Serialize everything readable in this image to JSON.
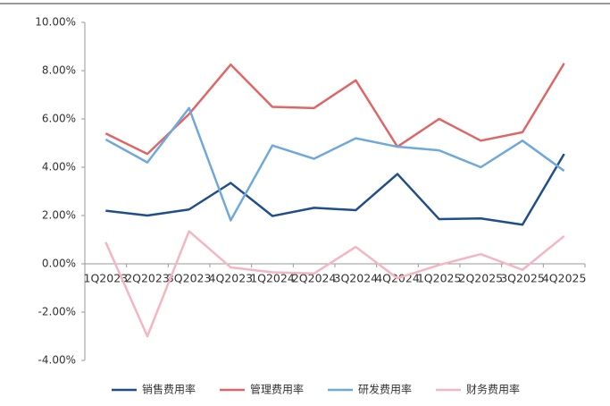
{
  "chart_data": {
    "type": "line",
    "categories": [
      "1Q2023",
      "2Q2023",
      "3Q2023",
      "4Q2023",
      "1Q2024",
      "2Q2024",
      "3Q2024",
      "4Q2024",
      "1Q2025",
      "2Q2025",
      "3Q2025",
      "4Q2025"
    ],
    "series": [
      {
        "name": "销售费用率",
        "color": "#1f4e8c",
        "values": [
          2.2,
          2.0,
          2.25,
          3.35,
          1.98,
          2.32,
          2.22,
          3.72,
          1.85,
          1.88,
          1.62,
          4.55
        ]
      },
      {
        "name": "管理费用率",
        "color": "#e06666",
        "values": [
          5.4,
          4.55,
          6.2,
          8.25,
          6.5,
          6.45,
          7.6,
          4.85,
          6.0,
          5.1,
          5.45,
          8.3
        ]
      },
      {
        "name": "研发费用率",
        "color": "#6fa8dc",
        "values": [
          5.15,
          4.2,
          6.45,
          1.8,
          4.9,
          4.35,
          5.2,
          4.85,
          4.7,
          4.0,
          5.1,
          3.85
        ]
      },
      {
        "name": "财务费用率",
        "color": "#f4b6c2",
        "values": [
          0.9,
          -3.0,
          1.35,
          -0.15,
          -0.35,
          -0.4,
          0.7,
          -0.6,
          -0.05,
          0.4,
          -0.25,
          1.15
        ]
      }
    ],
    "ylim": [
      -4,
      10
    ],
    "yticks": [
      {
        "value": -4,
        "label": "-4.00%"
      },
      {
        "value": -2,
        "label": "-2.00%"
      },
      {
        "value": 0,
        "label": "0.00%"
      },
      {
        "value": 2,
        "label": "2.00%"
      },
      {
        "value": 4,
        "label": "4.00%"
      },
      {
        "value": 6,
        "label": "6.00%"
      },
      {
        "value": 8,
        "label": "8.00%"
      },
      {
        "value": 10,
        "label": "10.00%"
      }
    ],
    "legend": "bottom"
  }
}
